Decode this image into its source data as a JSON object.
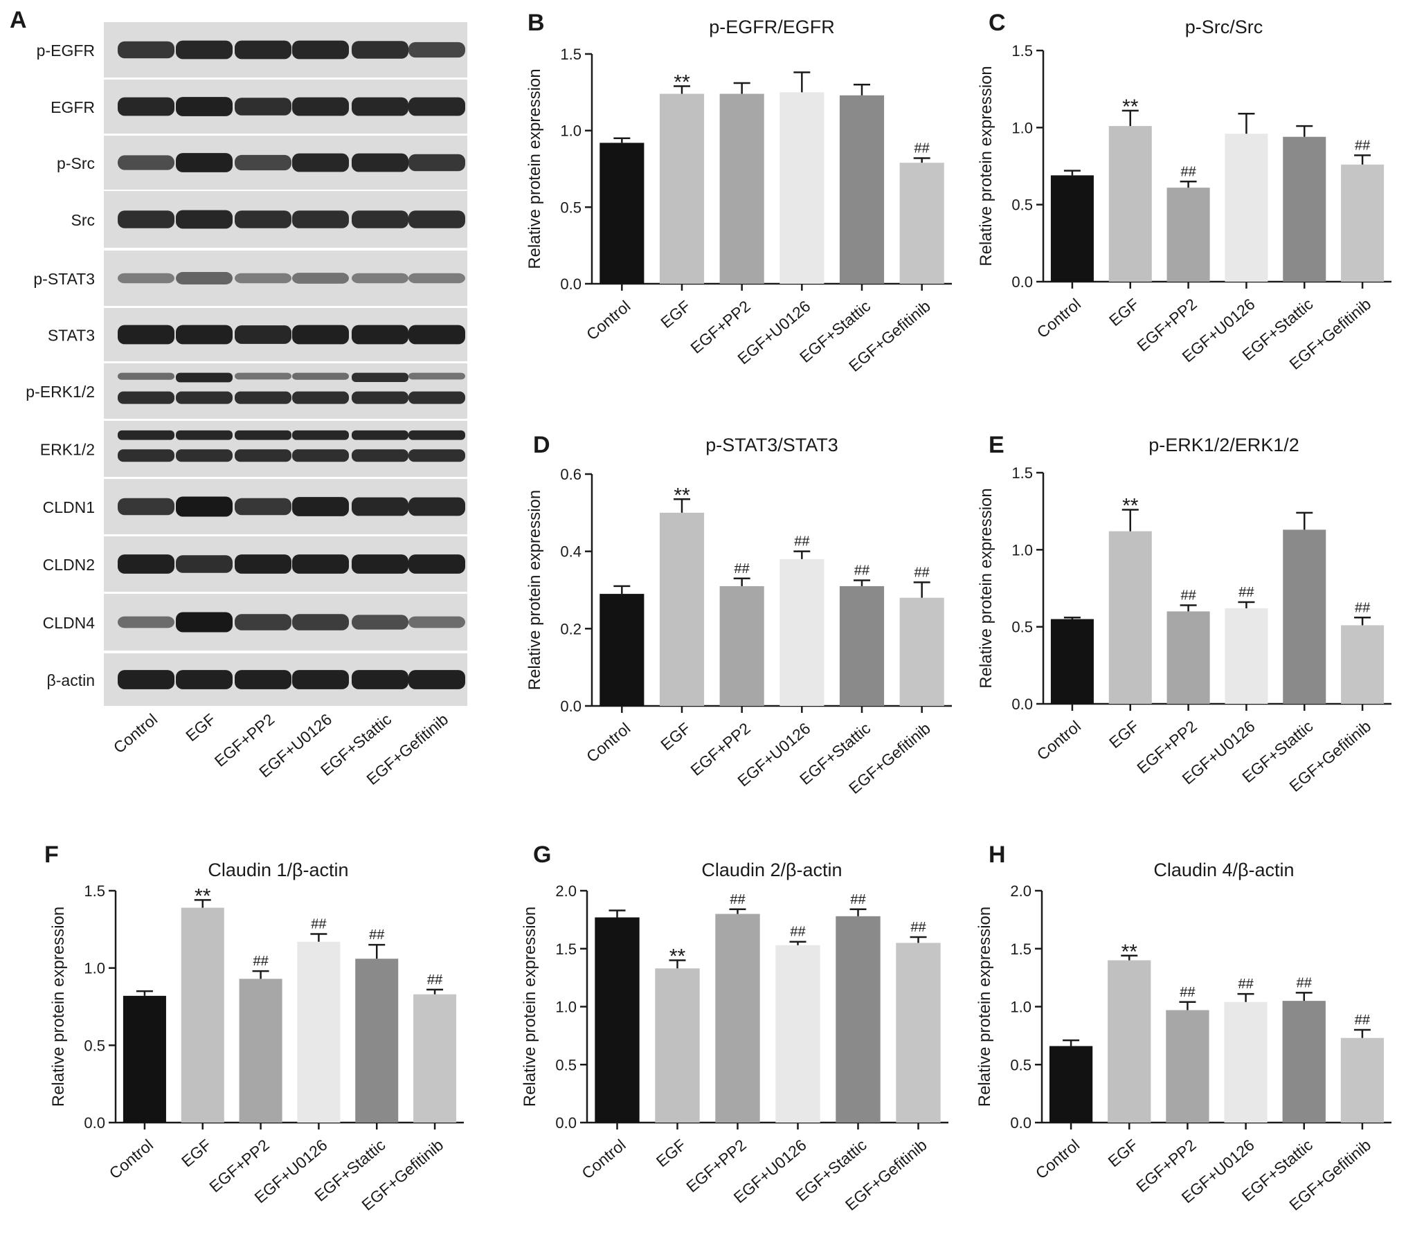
{
  "figure": {
    "blot": {
      "panel_letter": "A",
      "rows": [
        {
          "label": "p-EGFR",
          "intensity": [
            0.75,
            0.85,
            0.85,
            0.85,
            0.8,
            0.65
          ],
          "double": false
        },
        {
          "label": "EGFR",
          "intensity": [
            0.85,
            0.9,
            0.8,
            0.85,
            0.85,
            0.85
          ],
          "double": false
        },
        {
          "label": "p-Src",
          "intensity": [
            0.6,
            0.9,
            0.65,
            0.85,
            0.85,
            0.75
          ],
          "double": false
        },
        {
          "label": "Src",
          "intensity": [
            0.8,
            0.85,
            0.8,
            0.8,
            0.8,
            0.8
          ],
          "double": false
        },
        {
          "label": "p-STAT3",
          "intensity": [
            0.3,
            0.45,
            0.3,
            0.35,
            0.3,
            0.3
          ],
          "double": false
        },
        {
          "label": "STAT3",
          "intensity": [
            0.9,
            0.9,
            0.85,
            0.9,
            0.9,
            0.9
          ],
          "double": false
        },
        {
          "label": "p-ERK1/2",
          "intensity": [
            0.4,
            0.85,
            0.35,
            0.4,
            0.8,
            0.35
          ],
          "double": true
        },
        {
          "label": "ERK1/2",
          "intensity": [
            0.85,
            0.85,
            0.85,
            0.85,
            0.85,
            0.85
          ],
          "double": true
        },
        {
          "label": "CLDN1",
          "intensity": [
            0.75,
            0.95,
            0.75,
            0.9,
            0.85,
            0.85
          ],
          "double": false
        },
        {
          "label": "CLDN2",
          "intensity": [
            0.9,
            0.8,
            0.9,
            0.9,
            0.9,
            0.9
          ],
          "double": false
        },
        {
          "label": "CLDN4",
          "intensity": [
            0.4,
            0.95,
            0.7,
            0.7,
            0.6,
            0.4
          ],
          "double": false
        },
        {
          "label": "β-actin",
          "intensity": [
            0.9,
            0.9,
            0.9,
            0.9,
            0.9,
            0.9
          ],
          "double": false
        }
      ],
      "lanes": [
        "Control",
        "EGF",
        "EGF+PP2",
        "EGF+U0126",
        "EGF+Stattic",
        "EGF+Gefitinib"
      ]
    }
  },
  "chart_data": [
    {
      "panel": "B",
      "type": "bar",
      "title": "p-EGFR/EGFR",
      "categories": [
        "Control",
        "EGF",
        "EGF+PP2",
        "EGF+U0126",
        "EGF+Stattic",
        "EGF+Gefitinib"
      ],
      "values": [
        0.92,
        1.24,
        1.24,
        1.25,
        1.23,
        0.79
      ],
      "errors": [
        0.03,
        0.05,
        0.07,
        0.13,
        0.07,
        0.03
      ],
      "annotations": [
        "",
        "**",
        "",
        "",
        "",
        "##"
      ],
      "ylabel": "Relative protein expression",
      "ylim": [
        0,
        1.5
      ],
      "yticks": [
        0.0,
        0.5,
        1.0,
        1.5
      ]
    },
    {
      "panel": "C",
      "type": "bar",
      "title": "p-Src/Src",
      "categories": [
        "Control",
        "EGF",
        "EGF+PP2",
        "EGF+U0126",
        "EGF+Stattic",
        "EGF+Gefitinib"
      ],
      "values": [
        0.69,
        1.01,
        0.61,
        0.96,
        0.94,
        0.76
      ],
      "errors": [
        0.03,
        0.1,
        0.04,
        0.13,
        0.07,
        0.06
      ],
      "annotations": [
        "",
        "**",
        "##",
        "",
        "",
        "##"
      ],
      "ylabel": "Relative protein expression",
      "ylim": [
        0,
        1.5
      ],
      "yticks": [
        0.0,
        0.5,
        1.0,
        1.5
      ]
    },
    {
      "panel": "D",
      "type": "bar",
      "title": "p-STAT3/STAT3",
      "categories": [
        "Control",
        "EGF",
        "EGF+PP2",
        "EGF+U0126",
        "EGF+Stattic",
        "EGF+Gefitinib"
      ],
      "values": [
        0.29,
        0.5,
        0.31,
        0.38,
        0.31,
        0.28
      ],
      "errors": [
        0.02,
        0.035,
        0.02,
        0.02,
        0.015,
        0.04
      ],
      "annotations": [
        "",
        "**",
        "##",
        "##",
        "##",
        "##"
      ],
      "ylabel": "Relative protein expression",
      "ylim": [
        0,
        0.6
      ],
      "yticks": [
        0.0,
        0.2,
        0.4,
        0.6
      ]
    },
    {
      "panel": "E",
      "type": "bar",
      "title": "p-ERK1/2/ERK1/2",
      "categories": [
        "Control",
        "EGF",
        "EGF+PP2",
        "EGF+U0126",
        "EGF+Stattic",
        "EGF+Gefitinib"
      ],
      "values": [
        0.55,
        1.12,
        0.6,
        0.62,
        1.13,
        0.51
      ],
      "errors": [
        0.01,
        0.14,
        0.04,
        0.04,
        0.11,
        0.05
      ],
      "annotations": [
        "",
        "**",
        "##",
        "##",
        "",
        "##"
      ],
      "ylabel": "Relative protein expression",
      "ylim": [
        0,
        1.5
      ],
      "yticks": [
        0.0,
        0.5,
        1.0,
        1.5
      ]
    },
    {
      "panel": "F",
      "type": "bar",
      "title": "Claudin 1/β-actin",
      "categories": [
        "Control",
        "EGF",
        "EGF+PP2",
        "EGF+U0126",
        "EGF+Stattic",
        "EGF+Gefitinib"
      ],
      "values": [
        0.82,
        1.39,
        0.93,
        1.17,
        1.06,
        0.83
      ],
      "errors": [
        0.03,
        0.05,
        0.05,
        0.05,
        0.09,
        0.03
      ],
      "annotations": [
        "",
        "**",
        "##",
        "##",
        "##",
        "##"
      ],
      "ylabel": "Relative protein expression",
      "ylim": [
        0,
        1.5
      ],
      "yticks": [
        0.0,
        0.5,
        1.0,
        1.5
      ]
    },
    {
      "panel": "G",
      "type": "bar",
      "title": "Claudin 2/β-actin",
      "categories": [
        "Control",
        "EGF",
        "EGF+PP2",
        "EGF+U0126",
        "EGF+Stattic",
        "EGF+Gefitinib"
      ],
      "values": [
        1.77,
        1.33,
        1.8,
        1.53,
        1.78,
        1.55
      ],
      "errors": [
        0.06,
        0.07,
        0.04,
        0.03,
        0.06,
        0.05
      ],
      "annotations": [
        "",
        "**",
        "##",
        "##",
        "##",
        "##"
      ],
      "ylabel": "Relative protein expression",
      "ylim": [
        0,
        2.0
      ],
      "yticks": [
        0.0,
        0.5,
        1.0,
        1.5,
        2.0
      ]
    },
    {
      "panel": "H",
      "type": "bar",
      "title": "Claudin 4/β-actin",
      "categories": [
        "Control",
        "EGF",
        "EGF+PP2",
        "EGF+U0126",
        "EGF+Stattic",
        "EGF+Gefitinib"
      ],
      "values": [
        0.66,
        1.4,
        0.97,
        1.04,
        1.05,
        0.73
      ],
      "errors": [
        0.05,
        0.04,
        0.07,
        0.07,
        0.07,
        0.07
      ],
      "annotations": [
        "",
        "**",
        "##",
        "##",
        "##",
        "##"
      ],
      "ylabel": "Relative protein expression",
      "ylim": [
        0,
        2.0
      ],
      "yticks": [
        0.0,
        0.5,
        1.0,
        1.5,
        2.0
      ]
    }
  ],
  "colors": {
    "bars": [
      "#121212",
      "#c0c0c0",
      "#a7a7a7",
      "#e8e8e8",
      "#8a8a8a",
      "#c5c5c5"
    ],
    "axis": "#1a1a1a",
    "blot_background": "#dcdcdc",
    "band": "#101010"
  }
}
